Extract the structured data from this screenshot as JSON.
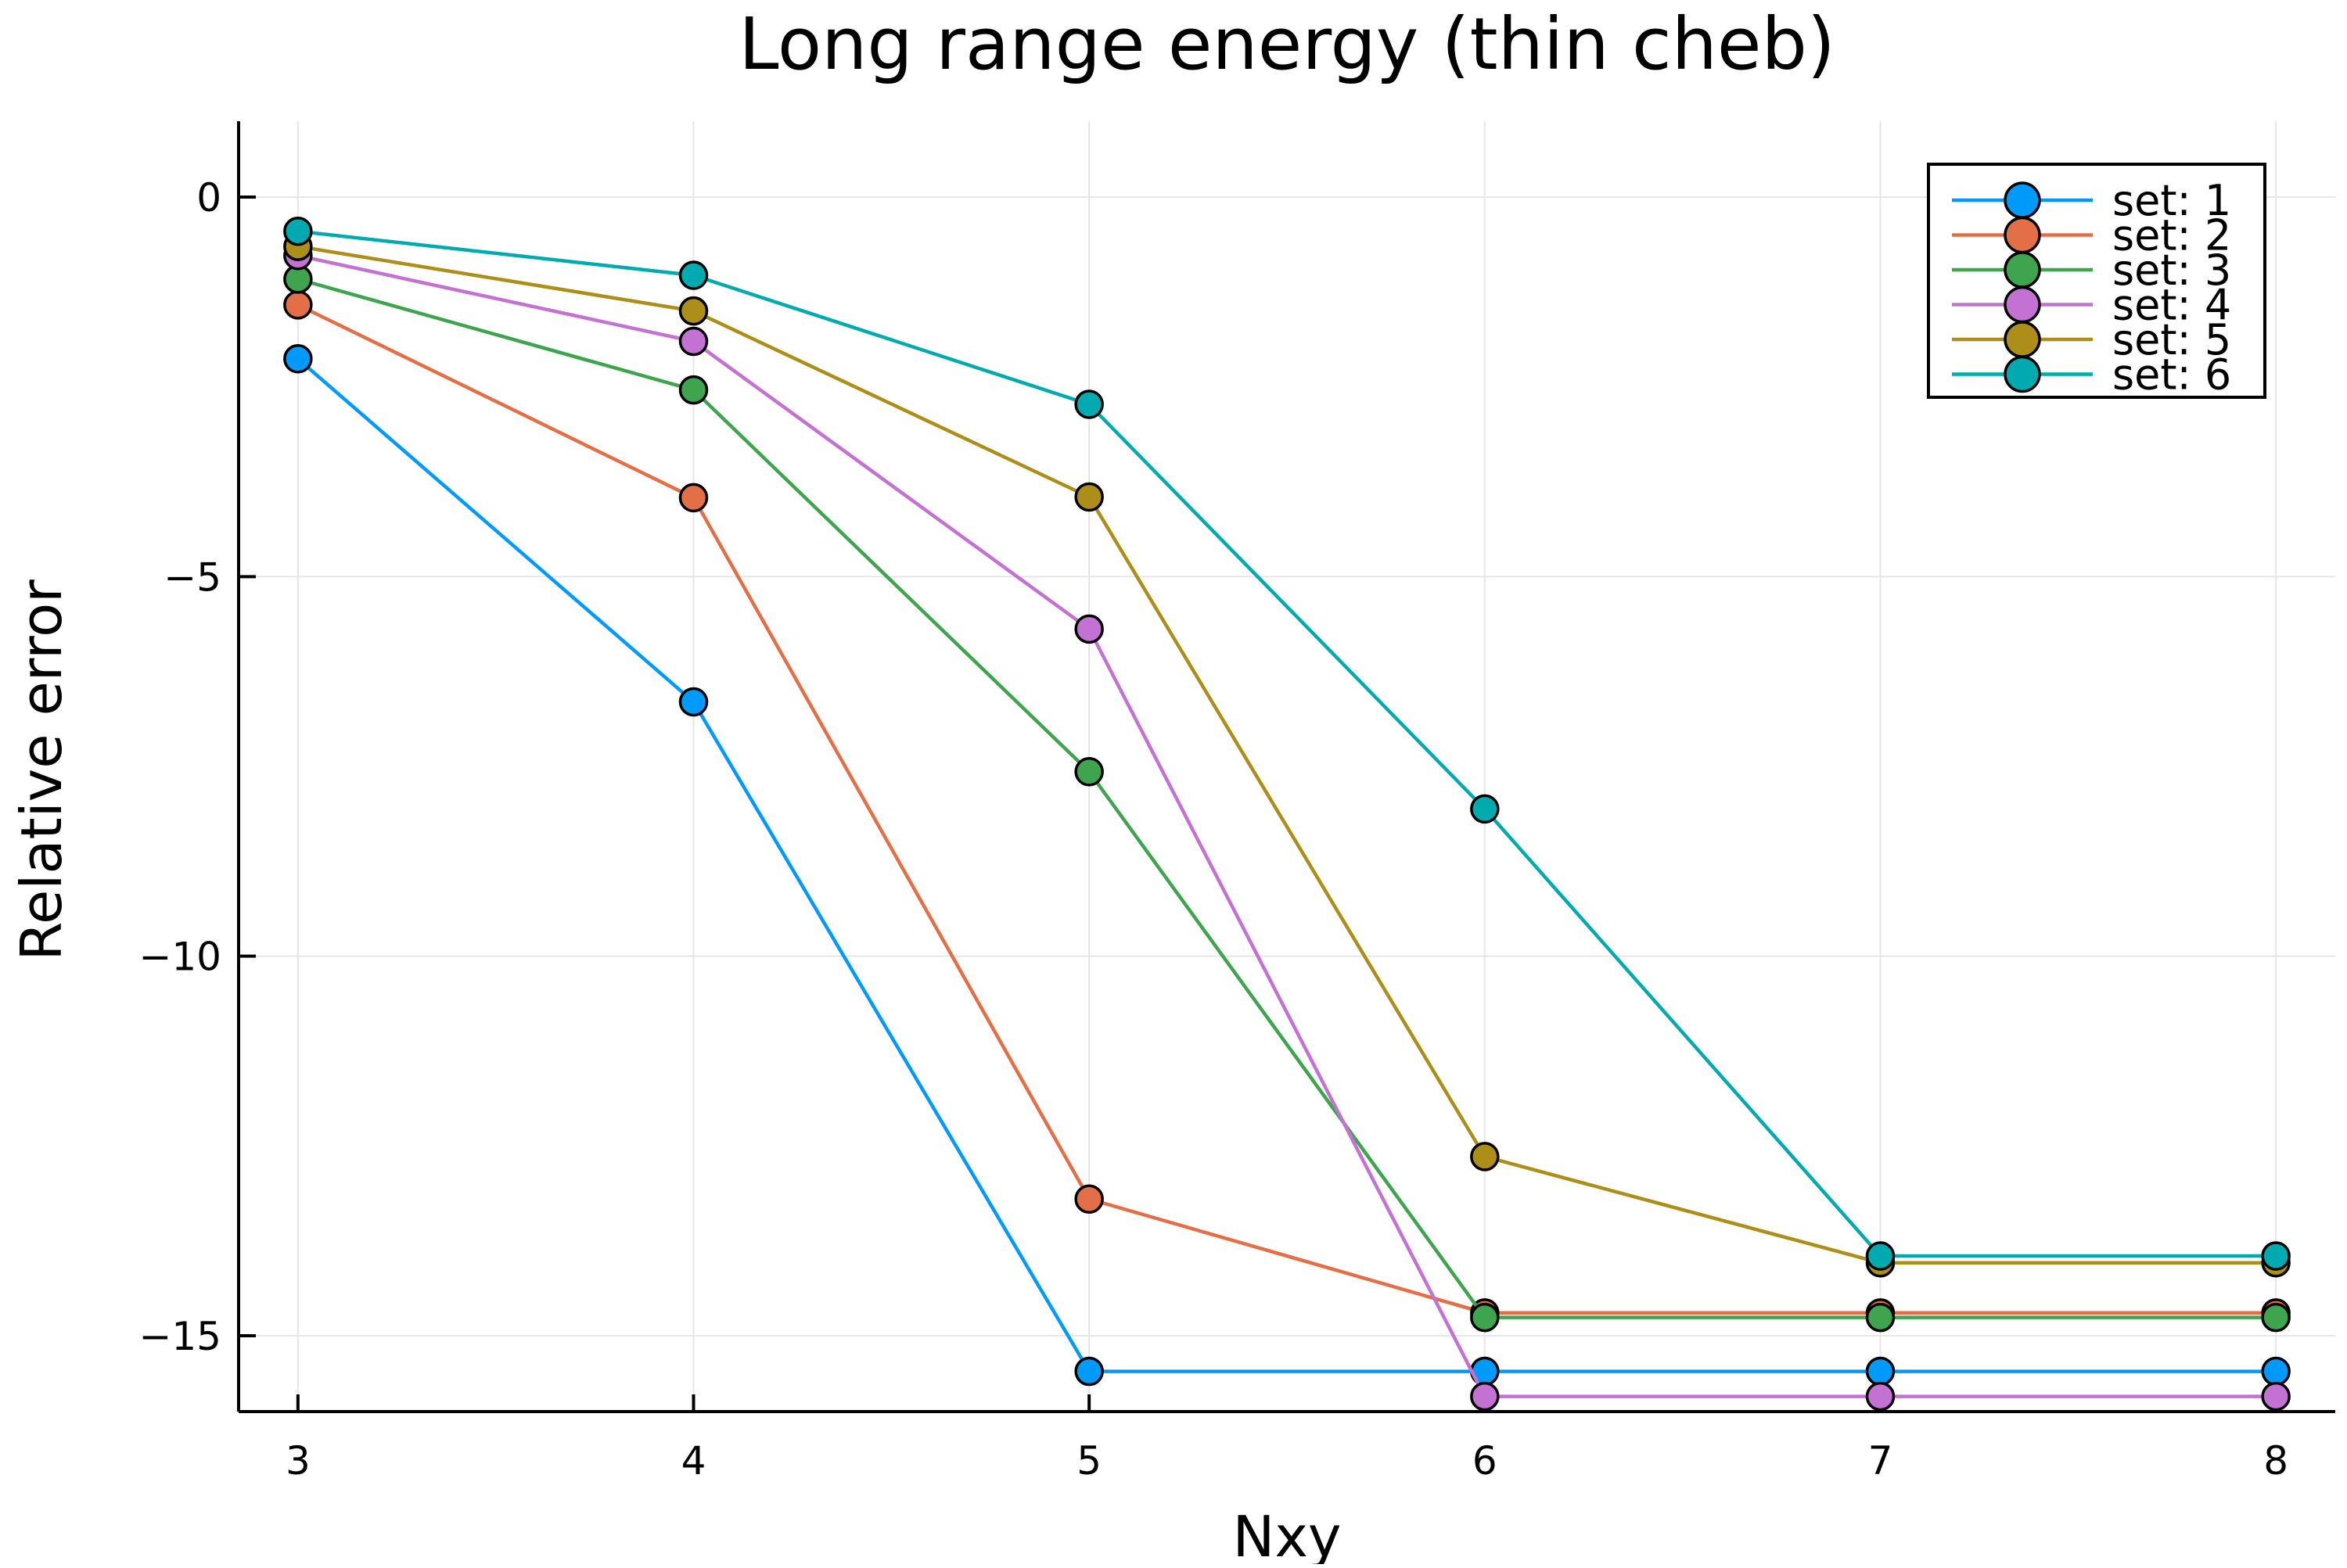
{
  "chart_data": {
    "type": "line",
    "title": "Long range energy (thin cheb)",
    "xlabel": "Nxy",
    "ylabel": "Relative error",
    "x": [
      3,
      4,
      5,
      6,
      7,
      8
    ],
    "xlim": [
      2.85,
      8.15
    ],
    "ylim": [
      -16,
      1
    ],
    "xticks": [
      3,
      4,
      5,
      6,
      7,
      8
    ],
    "yticks": [
      0,
      -5,
      -10,
      -15
    ],
    "ytick_labels": [
      "0",
      "−5",
      "−10",
      "−15"
    ],
    "grid": true,
    "legend_position": "top-right",
    "markers": "circle",
    "series": [
      {
        "name": "set: 1",
        "color": "#009AFA",
        "values": [
          -2.13,
          -6.65,
          -15.47,
          -15.47,
          -15.47,
          -15.47
        ]
      },
      {
        "name": "set: 2",
        "color": "#E36F47",
        "values": [
          -1.42,
          -3.96,
          -13.2,
          -14.7,
          -14.7,
          -14.7
        ]
      },
      {
        "name": "set: 3",
        "color": "#3EA44E",
        "values": [
          -1.08,
          -2.54,
          -7.57,
          -14.76,
          -14.76,
          -14.76
        ]
      },
      {
        "name": "set: 4",
        "color": "#C371D2",
        "values": [
          -0.77,
          -1.9,
          -5.69,
          -15.8,
          -15.8,
          -15.8
        ]
      },
      {
        "name": "set: 5",
        "color": "#AC8E18",
        "values": [
          -0.65,
          -1.5,
          -3.95,
          -12.64,
          -14.04,
          -14.04
        ]
      },
      {
        "name": "set: 6",
        "color": "#00AAAE",
        "values": [
          -0.45,
          -1.03,
          -2.73,
          -8.06,
          -13.95,
          -13.95
        ]
      }
    ]
  }
}
